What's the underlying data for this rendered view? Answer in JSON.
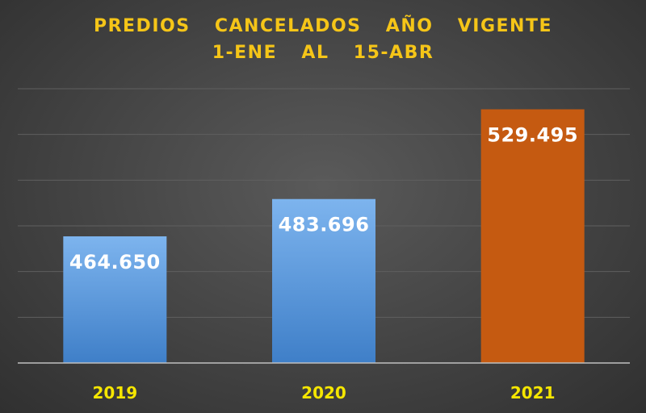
{
  "chart_data": {
    "type": "bar",
    "title": "PREDIOS  CANCELADOS  AÑO  VIGENTE",
    "subtitle": "1-ENE  AL  15-ABR",
    "categories": [
      "2019",
      "2020",
      "2021"
    ],
    "values": [
      464.65,
      483.696,
      529.495
    ],
    "value_labels": [
      "464.650",
      "483.696",
      "529.495"
    ],
    "ylim": [
      400,
      540
    ],
    "grid": true,
    "legend": "none"
  },
  "colors": {
    "title": "#f5c518",
    "category_labels": "#f5e600",
    "value_labels": "#ffffff",
    "bars": [
      "#4f8fd6",
      "#4f8fd6",
      "#c55a11"
    ],
    "gridlines": "#5f5f5f",
    "axis": "#bfbfbf"
  }
}
